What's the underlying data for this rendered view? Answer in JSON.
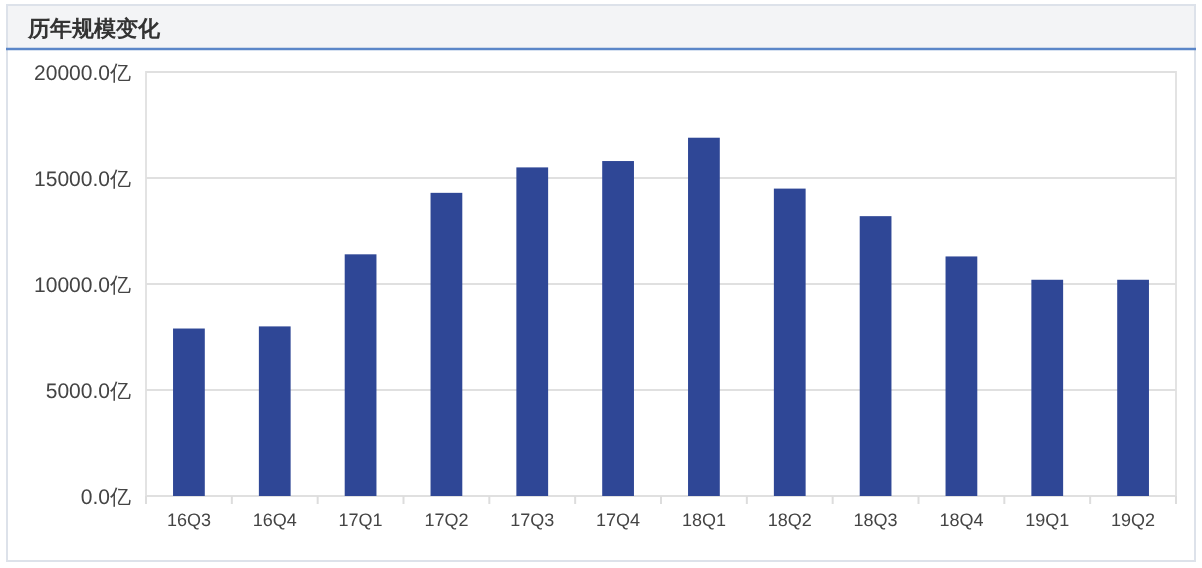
{
  "chart_data": {
    "type": "bar",
    "title": "历年规模变化",
    "categories": [
      "16Q3",
      "16Q4",
      "17Q1",
      "17Q2",
      "17Q3",
      "17Q4",
      "18Q1",
      "18Q2",
      "18Q3",
      "18Q4",
      "19Q1",
      "19Q2"
    ],
    "values": [
      7900,
      8000,
      11400,
      14300,
      15500,
      15800,
      16900,
      14500,
      13200,
      11300,
      10200,
      10200
    ],
    "color": "#2f4796",
    "ylim": [
      0,
      20000
    ],
    "yticks": [
      {
        "value": 0,
        "label": "0.0亿"
      },
      {
        "value": 5000,
        "label": "5000.0亿"
      },
      {
        "value": 10000,
        "label": "10000.0亿"
      },
      {
        "value": 15000,
        "label": "15000.0亿"
      },
      {
        "value": 20000,
        "label": "20000.0亿"
      }
    ],
    "grid": "y"
  }
}
